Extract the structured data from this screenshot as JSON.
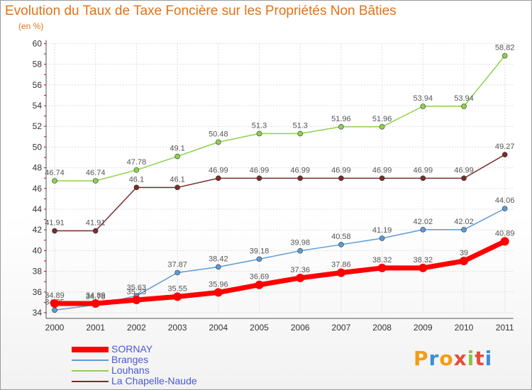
{
  "header": {
    "title": "Evolution du Taux de Taxe Foncière sur les Propriétés Non Bâties",
    "subtitle": "(en %)"
  },
  "logo": {
    "text": "Proxiti"
  },
  "chart_data": {
    "type": "line",
    "title": "Evolution du Taux de Taxe Foncière sur les Propriétés Non Bâties",
    "ylabel": "(en %)",
    "xlabel": "",
    "categories": [
      "2000",
      "2001",
      "2002",
      "2003",
      "2004",
      "2005",
      "2006",
      "2007",
      "2008",
      "2009",
      "2010",
      "2011"
    ],
    "ylim": [
      34,
      60
    ],
    "yticks": [
      34,
      36,
      38,
      40,
      42,
      44,
      46,
      48,
      50,
      52,
      54,
      56,
      58,
      60
    ],
    "grid": true,
    "legend_position": "bottom-left",
    "series": [
      {
        "name": "SORNAY",
        "color": "#ff0000",
        "values": [
          34.89,
          34.89,
          35.23,
          35.55,
          35.96,
          36.69,
          37.36,
          37.86,
          38.32,
          38.32,
          39,
          40.89
        ],
        "labels": [
          "34.89",
          "34.89",
          "35.23",
          "35.55",
          "35.96",
          "36.69",
          "37.36",
          "37.86",
          "38.32",
          "38.32",
          "39",
          "40.89"
        ]
      },
      {
        "name": "Branges",
        "color": "#5b9bd5",
        "values": [
          34.25,
          34.76,
          35.63,
          37.87,
          38.42,
          39.18,
          39.98,
          40.58,
          41.19,
          42.02,
          42.02,
          44.06
        ],
        "labels": [
          "34.25",
          "34.76",
          "35.63",
          "37.87",
          "38.42",
          "39.18",
          "39.98",
          "40.58",
          "41.19",
          "42.02",
          "42.02",
          "44.06"
        ]
      },
      {
        "name": "Louhans",
        "color": "#8ed14f",
        "values": [
          46.74,
          46.74,
          47.78,
          49.1,
          50.48,
          51.3,
          51.3,
          51.96,
          51.96,
          53.94,
          53.94,
          58.82
        ],
        "labels": [
          "46.74",
          "46.74",
          "47.78",
          "49.1",
          "50.48",
          "51.3",
          "51.3",
          "51.96",
          "51.96",
          "53.94",
          "53.94",
          "58.82"
        ]
      },
      {
        "name": "La Chapelle-Naude",
        "color": "#7b2c2c",
        "values": [
          41.91,
          41.91,
          46.1,
          46.1,
          46.99,
          46.99,
          46.99,
          46.99,
          46.99,
          46.99,
          46.99,
          49.27
        ],
        "labels": [
          "41.91",
          "41.91",
          "46.1",
          "46.1",
          "46.99",
          "46.99",
          "46.99",
          "46.99",
          "46.99",
          "46.99",
          "46.99",
          "49.27"
        ]
      }
    ]
  }
}
